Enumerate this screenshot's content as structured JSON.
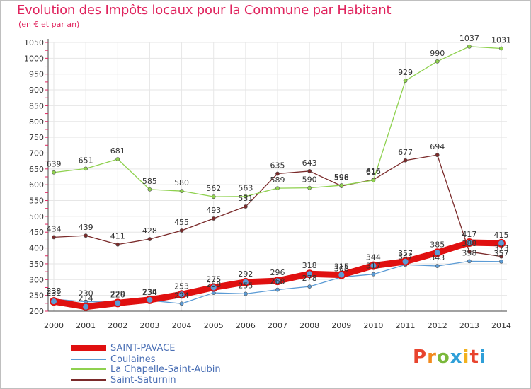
{
  "header": {
    "title": "Evolution des Impôts locaux pour la Commune par Habitant",
    "subtitle": "(en € et par an)"
  },
  "brand": {
    "logo_letters": [
      "P",
      "r",
      "o",
      "x",
      "i",
      "t",
      "i"
    ],
    "logo_colors": [
      "#e8442e",
      "#f28a1e",
      "#7ab83a",
      "#2f9fd8",
      "#f2b11e",
      "#e8442e",
      "#2f9fd8"
    ]
  },
  "chart_data": {
    "type": "line",
    "title": "Evolution des Impôts locaux pour la Commune par Habitant",
    "subtitle": "(en € et par an)",
    "xlabel": "",
    "ylabel": "",
    "ylim": [
      200,
      1050
    ],
    "yticks": [
      200,
      250,
      300,
      350,
      400,
      450,
      500,
      550,
      600,
      650,
      700,
      750,
      800,
      850,
      900,
      950,
      1000,
      1050
    ],
    "grid": true,
    "legend_position": "bottom-left",
    "x": [
      "2000",
      "2001",
      "2002",
      "2003",
      "2004",
      "2005",
      "2006",
      "2007",
      "2008",
      "2009",
      "2010",
      "2011",
      "2012",
      "2013",
      "2014"
    ],
    "series": [
      {
        "name": "Saint-Saturnin",
        "color": "#7a2a2a",
        "width": 1.3,
        "values": [
          434,
          439,
          411,
          428,
          455,
          493,
          531,
          635,
          643,
          596,
          616,
          677,
          694,
          388,
          373
        ]
      },
      {
        "name": "La Chapelle-Saint-Aubin",
        "color": "#8fd14f",
        "width": 1.3,
        "values": [
          639,
          651,
          681,
          585,
          580,
          562,
          563,
          589,
          590,
          598,
          614,
          929,
          990,
          1037,
          1031
        ]
      },
      {
        "name": "Coulaines",
        "color": "#5b9bd5",
        "width": 1.3,
        "values": [
          238,
          230,
          229,
          234,
          224,
          258,
          255,
          268,
          278,
          308,
          317,
          347,
          343,
          358,
          357
        ]
      },
      {
        "name": "SAINT-PAVACE",
        "color": "#e01010",
        "width": 9,
        "values": [
          231,
          214,
          226,
          236,
          253,
          275,
          292,
          296,
          318,
          315,
          344,
          357,
          385,
          417,
          415
        ]
      }
    ],
    "data_labels": {
      "Saint-Saturnin": [
        "434",
        "439",
        "411",
        "428",
        "455",
        "493",
        "531",
        "635",
        "643",
        "596",
        "616",
        "677",
        "694",
        "388",
        "373"
      ],
      "La Chapelle-Saint-Aubin": [
        "639",
        "651",
        "681",
        "585",
        "580",
        "562",
        "563",
        "589",
        "590",
        "598",
        "614",
        "929",
        "990",
        "1037",
        "1031"
      ],
      "Coulaines": [
        "238",
        "230",
        "229",
        "234",
        "224",
        "258",
        "255",
        "268",
        "278",
        "308",
        "317",
        "347",
        "343",
        "358",
        "357"
      ],
      "SAINT-PAVACE": [
        "231",
        "214",
        "226",
        "236",
        "253",
        "275",
        "292",
        "296",
        "318",
        "315",
        "344",
        "357",
        "385",
        "417",
        "415"
      ]
    }
  },
  "legend": [
    {
      "label": "SAINT-PAVACE",
      "color": "#e01010"
    },
    {
      "label": "Coulaines",
      "color": "#5b9bd5"
    },
    {
      "label": "La Chapelle-Saint-Aubin",
      "color": "#8fd14f"
    },
    {
      "label": "Saint-Saturnin",
      "color": "#7a2a2a"
    }
  ]
}
